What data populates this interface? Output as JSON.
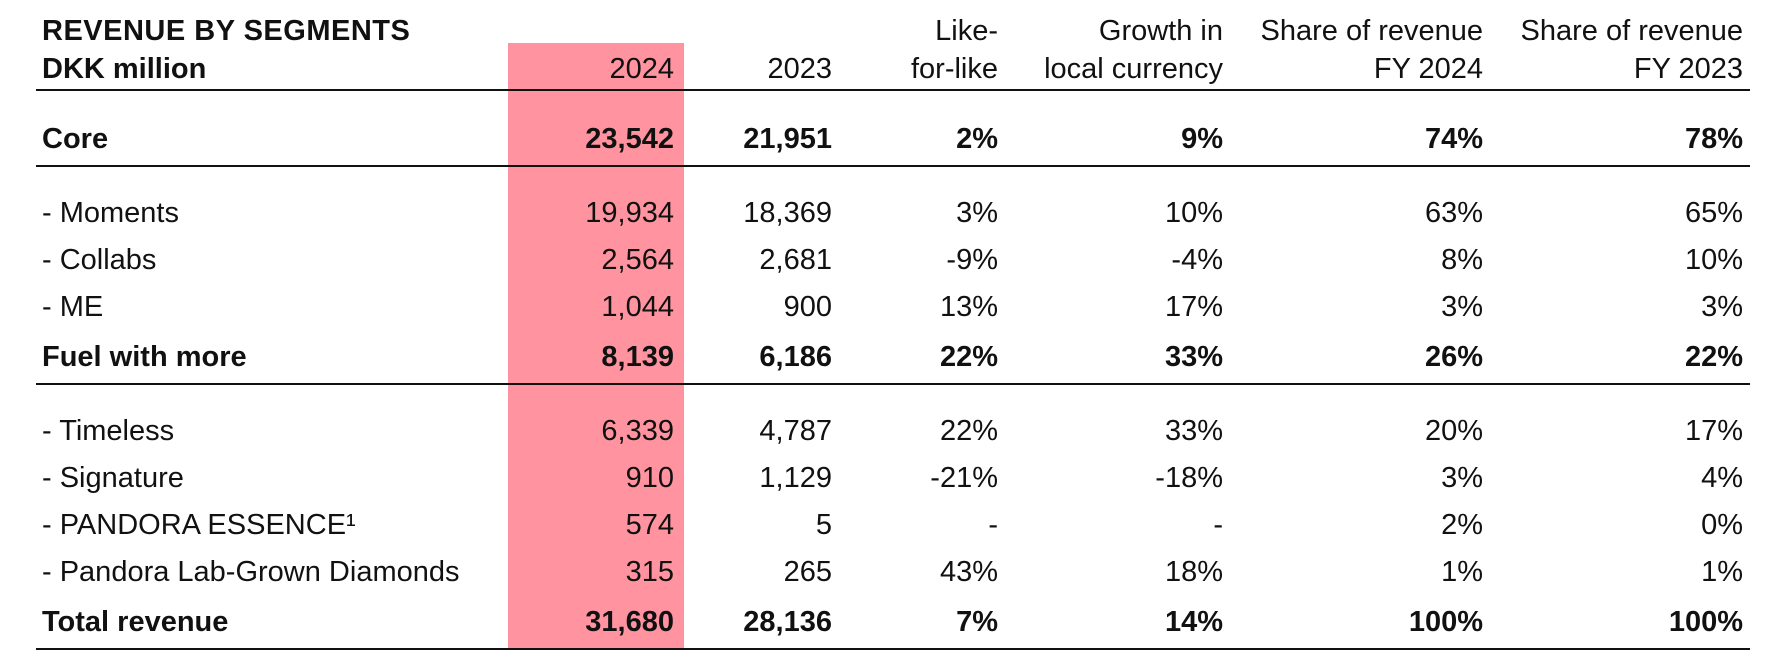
{
  "table": {
    "title": "REVENUE BY SEGMENTS",
    "unit": "DKK million",
    "columns": [
      {
        "line1": "",
        "line2": "2024"
      },
      {
        "line1": "",
        "line2": "2023"
      },
      {
        "line1": "Like-",
        "line2": "for-like"
      },
      {
        "line1": "Growth in",
        "line2": "local currency"
      },
      {
        "line1": "Share of revenue",
        "line2": "FY 2024"
      },
      {
        "line1": "Share of revenue",
        "line2": "FY 2023"
      }
    ],
    "rows": [
      {
        "label": "Core",
        "bold": true,
        "values": [
          "23,542",
          "21,951",
          "2%",
          "9%",
          "74%",
          "78%"
        ]
      },
      {
        "label": "- Moments",
        "bold": false,
        "values": [
          "19,934",
          "18,369",
          "3%",
          "10%",
          "63%",
          "65%"
        ]
      },
      {
        "label": "- Collabs",
        "bold": false,
        "values": [
          "2,564",
          "2,681",
          "-9%",
          "-4%",
          "8%",
          "10%"
        ]
      },
      {
        "label": "- ME",
        "bold": false,
        "values": [
          "1,044",
          "900",
          "13%",
          "17%",
          "3%",
          "3%"
        ]
      },
      {
        "label": "Fuel with more",
        "bold": true,
        "values": [
          "8,139",
          "6,186",
          "22%",
          "33%",
          "26%",
          "22%"
        ]
      },
      {
        "label": "- Timeless",
        "bold": false,
        "values": [
          "6,339",
          "4,787",
          "22%",
          "33%",
          "20%",
          "17%"
        ]
      },
      {
        "label": "- Signature",
        "bold": false,
        "values": [
          "910",
          "1,129",
          "-21%",
          "-18%",
          "3%",
          "4%"
        ]
      },
      {
        "label": "- PANDORA ESSENCE¹",
        "bold": false,
        "values": [
          "574",
          "5",
          "-",
          "-",
          "2%",
          "0%"
        ]
      },
      {
        "label": "- Pandora Lab-Grown Diamonds",
        "bold": false,
        "values": [
          "315",
          "265",
          "43%",
          "18%",
          "1%",
          "1%"
        ]
      },
      {
        "label": "Total revenue",
        "bold": true,
        "values": [
          "31,680",
          "28,136",
          "7%",
          "14%",
          "100%",
          "100%"
        ]
      }
    ]
  }
}
